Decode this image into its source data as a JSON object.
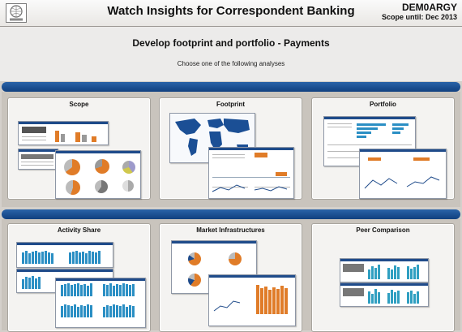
{
  "header": {
    "title": "Watch Insights for Correspondent Banking",
    "user_id": "DEM0ARGY",
    "scope": "Scope until: Dec 2013",
    "logo_icon": "swift-logo-icon"
  },
  "page": {
    "subtitle": "Develop footprint and portfolio - Payments",
    "instruction": "Choose one of the following analyses"
  },
  "analyses_row_1": [
    {
      "title": "Scope"
    },
    {
      "title": "Footprint"
    },
    {
      "title": "Portfolio"
    }
  ],
  "analyses_row_2": [
    {
      "title": "Activity Share"
    },
    {
      "title": "Market Infrastructures"
    },
    {
      "title": "Peer Comparison"
    }
  ],
  "colors": {
    "band": "#1f4b8a",
    "accent_orange": "#e07c28",
    "accent_blue": "#2b8fc4",
    "map_blue": "#1b4f95",
    "panel": "#c9c4bd"
  }
}
